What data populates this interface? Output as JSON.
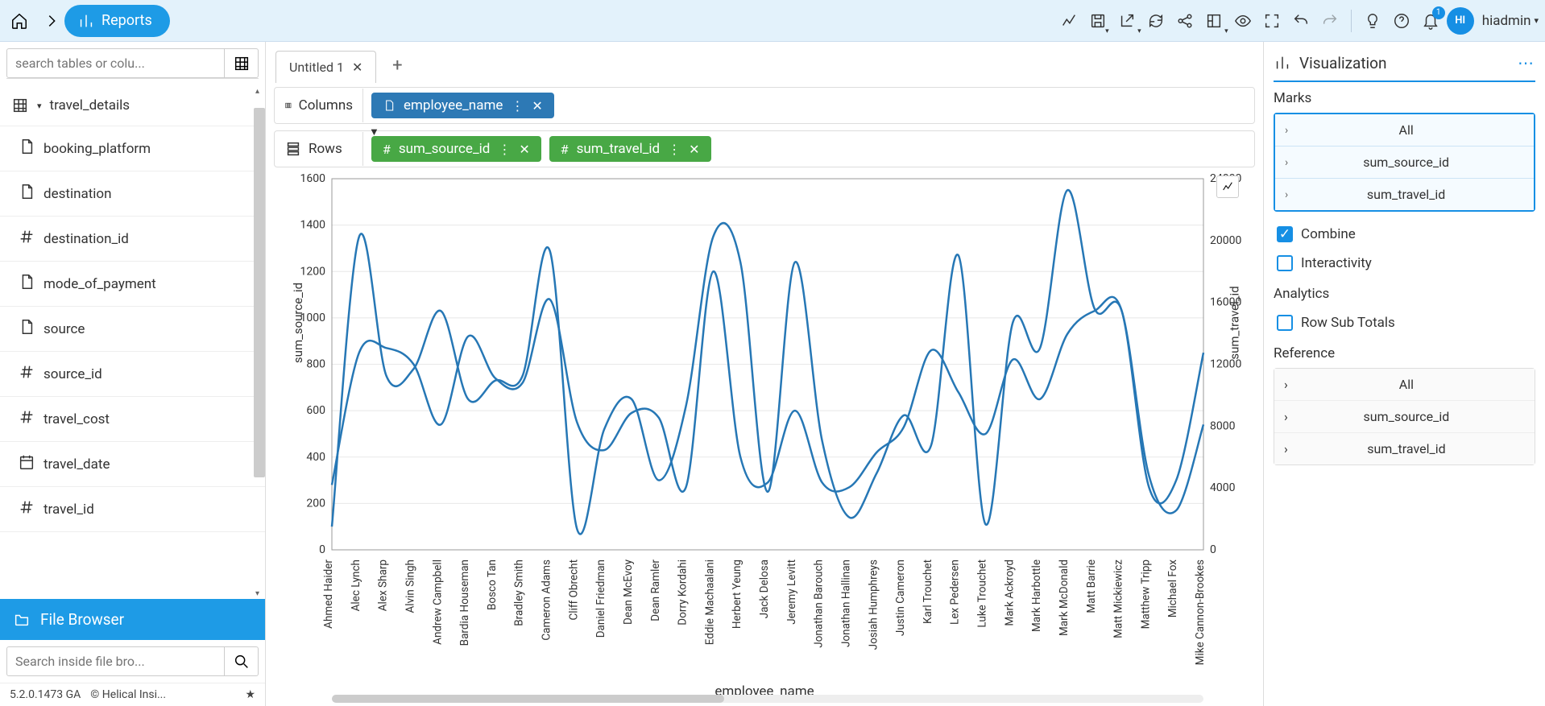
{
  "topbar": {
    "reports_label": "Reports",
    "username": "hiadmin",
    "user_initials": "HI",
    "notif_count": "1"
  },
  "tabs": {
    "items": [
      {
        "label": "Untitled 1"
      }
    ]
  },
  "sidebar": {
    "search_placeholder": "search tables or colu...",
    "table_name": "travel_details",
    "fields": [
      {
        "icon": "doc",
        "label": "booking_platform"
      },
      {
        "icon": "doc",
        "label": "destination"
      },
      {
        "icon": "hash",
        "label": "destination_id"
      },
      {
        "icon": "doc",
        "label": "mode_of_payment"
      },
      {
        "icon": "doc",
        "label": "source"
      },
      {
        "icon": "hash",
        "label": "source_id"
      },
      {
        "icon": "hash",
        "label": "travel_cost"
      },
      {
        "icon": "cal",
        "label": "travel_date"
      },
      {
        "icon": "hash",
        "label": "travel_id"
      }
    ],
    "filebrowser_label": "File Browser",
    "fb_search_placeholder": "Search inside file bro...",
    "version": "5.2.0.1473 GA",
    "copyright": "Helical Insi..."
  },
  "shelves": {
    "columns_label": "Columns",
    "rows_label": "Rows",
    "columns_pills": [
      {
        "label": "employee_name",
        "color": "blue"
      }
    ],
    "rows_pills": [
      {
        "label": "sum_source_id",
        "color": "green"
      },
      {
        "label": "sum_travel_id",
        "color": "green"
      }
    ]
  },
  "chart": {
    "type": "line-dual-axis",
    "left_axis_title": "sum_source_id",
    "right_axis_title": "sum_travel_id",
    "x_axis_title": "employee_name",
    "line_color": "#2677b5",
    "grid_color": "#e8e8e8",
    "background": "#ffffff",
    "line_width": 2.5,
    "left_ylim": [
      0,
      1600
    ],
    "left_ticks": [
      0,
      200,
      400,
      600,
      800,
      1000,
      1200,
      1400,
      1600
    ],
    "right_ylim": [
      0,
      24000
    ],
    "right_ticks": [
      0,
      4000,
      8000,
      12000,
      16000,
      20000,
      24000
    ],
    "categories": [
      "Ahmed Haider",
      "Alec Lynch",
      "Alex Sharp",
      "Alvin Singh",
      "Andrew Campbell",
      "Bardia Houseman",
      "Bosco Tan",
      "Bradley Smith",
      "Cameron Adams",
      "Cliff Obrecht",
      "Daniel Friedman",
      "Dean McEvoy",
      "Dean Ramler",
      "Dorry Kordahi",
      "Eddie Machaalani",
      "Herbert Yeung",
      "Jack Delosa",
      "Jeremy Levitt",
      "Jonathan Barouch",
      "Jonathan Hallinan",
      "Josiah Humphreys",
      "Justin Cameron",
      "Karl Trouchet",
      "Lex Pedersen",
      "Luke Trouchet",
      "Mark Ackroyd",
      "Mark Harbottle",
      "Mark McDonald",
      "Matt Barrie",
      "Matt Mickiewicz",
      "Matthew Tripp",
      "Michael Fox",
      "Mike Cannon-Brookes"
    ],
    "series1_values": [
      100,
      1350,
      750,
      780,
      1030,
      650,
      730,
      750,
      1290,
      90,
      520,
      650,
      300,
      620,
      1350,
      1240,
      250,
      1240,
      470,
      140,
      330,
      580,
      450,
      1270,
      110,
      980,
      870,
      1550,
      1040,
      1030,
      320,
      170,
      540
    ],
    "series2_values": [
      280,
      850,
      870,
      800,
      540,
      920,
      740,
      720,
      1080,
      550,
      430,
      590,
      570,
      270,
      1200,
      400,
      290,
      600,
      290,
      270,
      420,
      530,
      860,
      680,
      500,
      820,
      650,
      930,
      1030,
      1030,
      270,
      300,
      850
    ]
  },
  "rightpanel": {
    "title": "Visualization",
    "marks_label": "Marks",
    "marks_items": [
      "All",
      "sum_source_id",
      "sum_travel_id"
    ],
    "combine_label": "Combine",
    "combine_checked": true,
    "interactivity_label": "Interactivity",
    "interactivity_checked": false,
    "analytics_label": "Analytics",
    "row_subtotals_label": "Row Sub Totals",
    "row_subtotals_checked": false,
    "reference_label": "Reference",
    "reference_items": [
      "All",
      "sum_source_id",
      "sum_travel_id"
    ]
  }
}
